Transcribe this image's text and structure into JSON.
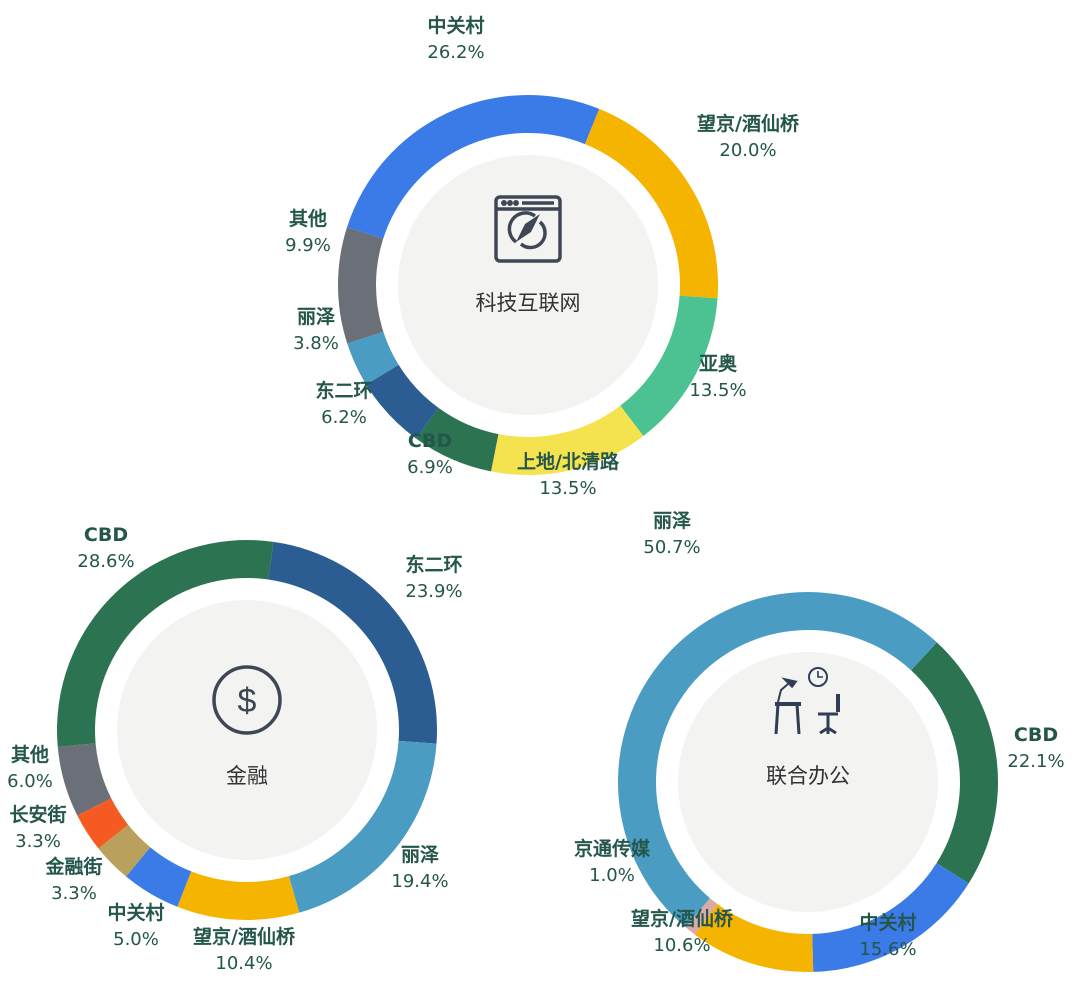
{
  "chart_data": [
    {
      "type": "pie",
      "title": "科技互联网",
      "center_icon": "browser-compass-icon",
      "categories": [
        "中关村",
        "望京/酒仙桥",
        "亚奥",
        "上地/北清路",
        "CBD",
        "东二环",
        "丽泽",
        "其他"
      ],
      "values": [
        26.2,
        20.0,
        13.5,
        13.5,
        6.9,
        6.2,
        3.8,
        9.9
      ],
      "labels": [
        "26.2%",
        "20.0%",
        "13.5%",
        "13.5%",
        "6.9%",
        "6.2%",
        "3.8%",
        "9.9%"
      ],
      "colors": [
        "#3b7be8",
        "#f5b400",
        "#4cc293",
        "#f4e24e",
        "#2c7352",
        "#2b5d93",
        "#4a9cc3",
        "#6b6f77"
      ]
    },
    {
      "type": "pie",
      "title": "金融",
      "center_icon": "dollar-coin-icon",
      "categories": [
        "东二环",
        "丽泽",
        "望京/酒仙桥",
        "中关村",
        "金融街",
        "长安街",
        "其他",
        "CBD"
      ],
      "values": [
        23.9,
        19.4,
        10.4,
        5.0,
        3.3,
        3.3,
        6.0,
        28.6
      ],
      "labels": [
        "23.9%",
        "19.4%",
        "10.4%",
        "5.0%",
        "3.3%",
        "3.3%",
        "6.0%",
        "28.6%"
      ],
      "colors": [
        "#2b5d93",
        "#4a9cc3",
        "#f5b400",
        "#3b7be8",
        "#b9a05c",
        "#f55a22",
        "#6b6f77",
        "#2c7352"
      ]
    },
    {
      "type": "pie",
      "title": "联合办公",
      "center_icon": "desk-workspace-icon",
      "categories": [
        "CBD",
        "中关村",
        "望京/酒仙桥",
        "京通传媒",
        "丽泽"
      ],
      "values": [
        22.1,
        15.6,
        10.6,
        1.0,
        50.7
      ],
      "labels": [
        "22.1%",
        "15.6%",
        "10.6%",
        "1.0%",
        "50.7%"
      ],
      "colors": [
        "#2c7352",
        "#3b7be8",
        "#f5b400",
        "#d9aaa8",
        "#4a9cc3"
      ]
    }
  ]
}
